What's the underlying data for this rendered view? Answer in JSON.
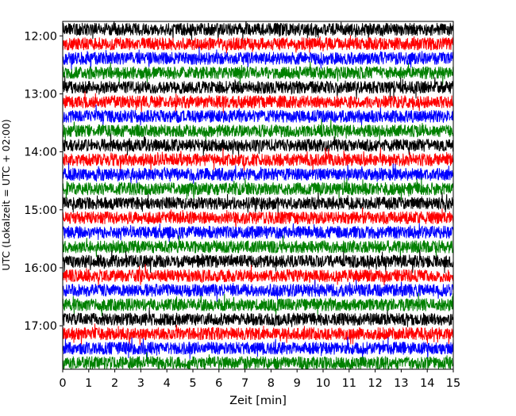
{
  "chart_data": {
    "type": "line",
    "title": "",
    "xlabel": "Zeit  [min]",
    "ylabel": "UTC (Lokalzeit = UTC + 02:00)",
    "xlim": [
      0,
      15
    ],
    "x_ticks": [
      0,
      1,
      2,
      3,
      4,
      5,
      6,
      7,
      8,
      9,
      10,
      11,
      12,
      13,
      14,
      15
    ],
    "y_tick_labels": [
      "12:00",
      "13:00",
      "14:00",
      "15:00",
      "16:00",
      "17:00"
    ],
    "trace_interval_min": 15,
    "trace_start": "11:45",
    "trace_end": "17:45",
    "color_cycle": [
      "#000000",
      "#ff0000",
      "#0000ff",
      "#008000"
    ],
    "traces": [
      {
        "start": "11:45",
        "color": "#000000"
      },
      {
        "start": "12:00",
        "color": "#ff0000"
      },
      {
        "start": "12:15",
        "color": "#0000ff"
      },
      {
        "start": "12:30",
        "color": "#008000"
      },
      {
        "start": "12:45",
        "color": "#000000"
      },
      {
        "start": "13:00",
        "color": "#ff0000"
      },
      {
        "start": "13:15",
        "color": "#0000ff"
      },
      {
        "start": "13:30",
        "color": "#008000"
      },
      {
        "start": "13:45",
        "color": "#000000"
      },
      {
        "start": "14:00",
        "color": "#ff0000"
      },
      {
        "start": "14:15",
        "color": "#0000ff"
      },
      {
        "start": "14:30",
        "color": "#008000"
      },
      {
        "start": "14:45",
        "color": "#000000"
      },
      {
        "start": "15:00",
        "color": "#ff0000"
      },
      {
        "start": "15:15",
        "color": "#0000ff"
      },
      {
        "start": "15:30",
        "color": "#008000"
      },
      {
        "start": "15:45",
        "color": "#000000"
      },
      {
        "start": "16:00",
        "color": "#ff0000"
      },
      {
        "start": "16:15",
        "color": "#0000ff"
      },
      {
        "start": "16:30",
        "color": "#008000"
      },
      {
        "start": "16:45",
        "color": "#000000"
      },
      {
        "start": "17:00",
        "color": "#ff0000"
      },
      {
        "start": "17:15",
        "color": "#0000ff"
      },
      {
        "start": "17:30",
        "color": "#008000"
      }
    ],
    "grid": false,
    "legend": "none"
  }
}
